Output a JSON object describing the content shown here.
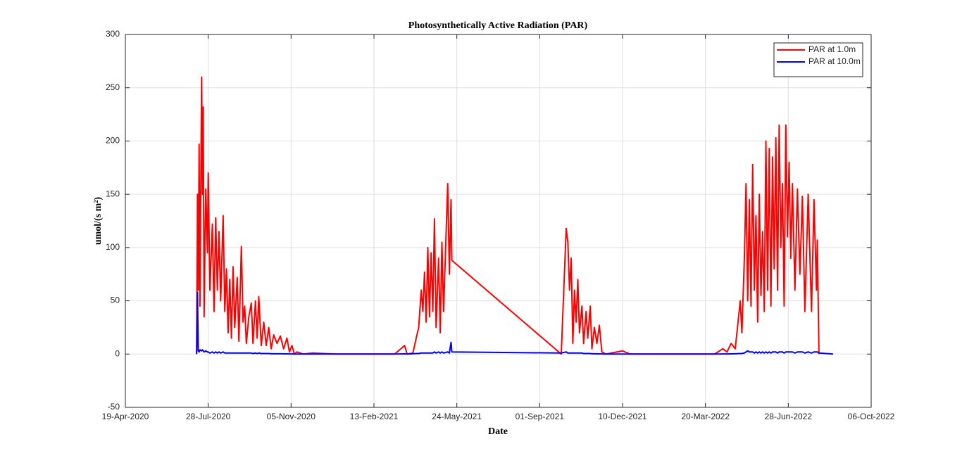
{
  "chart_data": {
    "type": "line",
    "title": "Photosynthetically Active Radiation (PAR)",
    "xlabel": "Date",
    "ylabel": "umol/(s m²)",
    "x": [
      "2020-07-14",
      "2020-07-15",
      "2020-07-16",
      "2020-07-17",
      "2020-07-18",
      "2020-07-20",
      "2020-07-21",
      "2020-07-22",
      "2020-07-23",
      "2020-07-25",
      "2020-07-27",
      "2020-07-28",
      "2020-07-30",
      "2020-08-02",
      "2020-08-04",
      "2020-08-06",
      "2020-08-08",
      "2020-08-10",
      "2020-08-12",
      "2020-08-15",
      "2020-08-17",
      "2020-08-19",
      "2020-08-21",
      "2020-08-23",
      "2020-08-25",
      "2020-08-27",
      "2020-08-29",
      "2020-09-01",
      "2020-09-03",
      "2020-09-06",
      "2020-09-08",
      "2020-09-10",
      "2020-09-12",
      "2020-09-15",
      "2020-09-18",
      "2020-09-20",
      "2020-09-23",
      "2020-09-25",
      "2020-09-27",
      "2020-09-30",
      "2020-10-03",
      "2020-10-06",
      "2020-10-09",
      "2020-10-12",
      "2020-10-15",
      "2020-10-19",
      "2020-10-23",
      "2020-10-27",
      "2020-10-31",
      "2020-11-03",
      "2020-11-06",
      "2020-11-09",
      "2020-11-12",
      "2020-11-20",
      "2020-12-01",
      "2020-12-28",
      "2021-03-10",
      "2021-03-22",
      "2021-03-25",
      "2021-04-01",
      "2021-04-05",
      "2021-04-08",
      "2021-04-11",
      "2021-04-13",
      "2021-04-15",
      "2021-04-17",
      "2021-04-19",
      "2021-04-21",
      "2021-04-23",
      "2021-04-25",
      "2021-04-27",
      "2021-04-29",
      "2021-05-02",
      "2021-05-04",
      "2021-05-06",
      "2021-05-08",
      "2021-05-13",
      "2021-05-15",
      "2021-05-17",
      "2021-05-18",
      "2021-09-27",
      "2021-10-03",
      "2021-10-05",
      "2021-10-07",
      "2021-10-09",
      "2021-10-11",
      "2021-10-13",
      "2021-10-15",
      "2021-10-17",
      "2021-10-19",
      "2021-10-22",
      "2021-10-24",
      "2021-10-27",
      "2021-10-29",
      "2021-11-01",
      "2021-11-03",
      "2021-11-06",
      "2021-11-09",
      "2021-11-12",
      "2021-11-15",
      "2021-11-20",
      "2021-12-10",
      "2021-12-19",
      "2022-03-31",
      "2022-04-10",
      "2022-04-15",
      "2022-04-20",
      "2022-04-25",
      "2022-05-01",
      "2022-05-03",
      "2022-05-06",
      "2022-05-08",
      "2022-05-10",
      "2022-05-12",
      "2022-05-14",
      "2022-05-16",
      "2022-05-18",
      "2022-05-20",
      "2022-05-22",
      "2022-05-24",
      "2022-05-26",
      "2022-05-28",
      "2022-05-30",
      "2022-06-01",
      "2022-06-03",
      "2022-06-05",
      "2022-06-07",
      "2022-06-09",
      "2022-06-11",
      "2022-06-13",
      "2022-06-15",
      "2022-06-17",
      "2022-06-19",
      "2022-06-21",
      "2022-06-23",
      "2022-06-25",
      "2022-06-27",
      "2022-06-29",
      "2022-07-01",
      "2022-07-03",
      "2022-07-06",
      "2022-07-09",
      "2022-07-12",
      "2022-07-15",
      "2022-07-18",
      "2022-07-22",
      "2022-07-26",
      "2022-07-29",
      "2022-08-01",
      "2022-08-02",
      "2022-08-04",
      "2022-08-21"
    ],
    "series": [
      {
        "name": "PAR at 1.0m",
        "color": "#ff0000",
        "values": [
          0,
          150,
          60,
          197,
          45,
          260,
          150,
          232,
          35,
          155,
          95,
          170,
          60,
          122,
          40,
          128,
          60,
          115,
          50,
          130,
          40,
          80,
          20,
          70,
          15,
          82,
          25,
          72,
          12,
          101,
          30,
          45,
          10,
          35,
          48,
          10,
          50,
          15,
          54,
          8,
          30,
          8,
          25,
          5,
          18,
          10,
          17,
          5,
          15,
          2,
          8,
          0,
          2,
          0,
          1,
          0,
          0,
          8,
          0,
          1,
          15,
          25,
          60,
          40,
          77,
          30,
          100,
          35,
          95,
          40,
          127,
          25,
          90,
          20,
          105,
          40,
          160,
          75,
          145,
          88,
          0,
          118,
          105,
          60,
          90,
          10,
          60,
          30,
          70,
          20,
          45,
          10,
          40,
          15,
          45,
          5,
          25,
          10,
          27,
          2,
          0,
          3,
          0,
          0,
          5,
          2,
          10,
          5,
          50,
          20,
          90,
          160,
          50,
          145,
          45,
          178,
          60,
          130,
          30,
          150,
          55,
          115,
          40,
          200,
          60,
          193,
          45,
          185,
          80,
          203,
          60,
          215,
          100,
          160,
          45,
          215,
          110,
          180,
          90,
          160,
          60,
          155,
          75,
          148,
          40,
          150,
          40,
          145,
          60,
          107,
          0,
          null
        ]
      },
      {
        "name": "PAR at 10.0m",
        "color": "#0000ff",
        "values": [
          0,
          58,
          3,
          2,
          4,
          3,
          4,
          3,
          2,
          3,
          2,
          2,
          1,
          2,
          1,
          2,
          1,
          2,
          1,
          2,
          1,
          1,
          1,
          1,
          1,
          1,
          1,
          1,
          1,
          1,
          1,
          1,
          1,
          1,
          1,
          0.5,
          1,
          0.5,
          1,
          0.5,
          0.5,
          0.5,
          0.5,
          0.3,
          0.3,
          0.3,
          0.3,
          0.2,
          0.2,
          0.1,
          0.1,
          0,
          0,
          0,
          0,
          0,
          0,
          0.2,
          0,
          0.3,
          0.5,
          0.5,
          1,
          1,
          1,
          1,
          1,
          1,
          1,
          1,
          2,
          1,
          2,
          1,
          2,
          1,
          2,
          1,
          11,
          2,
          1,
          2,
          1,
          1,
          1,
          1,
          1,
          1,
          1,
          1,
          1,
          0.5,
          0.5,
          0.5,
          0.5,
          0.3,
          0.3,
          0.2,
          0.2,
          0.1,
          0,
          0,
          0,
          0,
          0.1,
          0.1,
          0.2,
          0.3,
          0.5,
          0.5,
          1,
          2,
          3,
          2,
          2,
          2,
          1,
          2,
          1,
          2,
          1,
          2,
          1,
          2,
          1,
          2,
          1,
          2,
          2,
          2,
          1,
          2,
          2,
          2,
          1,
          2,
          2,
          2,
          2,
          2,
          1,
          2,
          2,
          2,
          1,
          2,
          1,
          2,
          2,
          2,
          1,
          0
        ]
      }
    ],
    "xlim": [
      "2020-04-19",
      "2022-10-06"
    ],
    "xticks": [
      {
        "value": "2020-04-19",
        "label": "19-Apr-2020"
      },
      {
        "value": "2020-07-28",
        "label": "28-Jul-2020"
      },
      {
        "value": "2020-11-05",
        "label": "05-Nov-2020"
      },
      {
        "value": "2021-02-13",
        "label": "13-Feb-2021"
      },
      {
        "value": "2021-05-24",
        "label": "24-May-2021"
      },
      {
        "value": "2021-09-01",
        "label": "01-Sep-2021"
      },
      {
        "value": "2021-12-10",
        "label": "10-Dec-2021"
      },
      {
        "value": "2022-03-20",
        "label": "20-Mar-2022"
      },
      {
        "value": "2022-06-28",
        "label": "28-Jun-2022"
      },
      {
        "value": "2022-10-06",
        "label": "06-Oct-2022"
      }
    ],
    "ylim": [
      -50,
      300
    ],
    "yticks": [
      -50,
      0,
      50,
      100,
      150,
      200,
      250,
      300
    ],
    "grid": true,
    "legend": "upper right"
  }
}
